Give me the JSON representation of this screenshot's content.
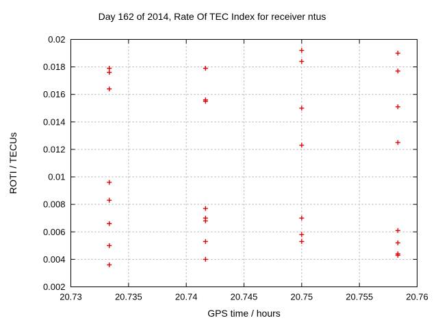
{
  "chart_data": {
    "type": "scatter",
    "title": "Day 162 of 2014, Rate Of TEC Index for receiver ntus",
    "xlabel": "GPS time / hours",
    "ylabel": "ROTI / TECUs",
    "xlim": [
      20.73,
      20.76
    ],
    "ylim": [
      0.002,
      0.02
    ],
    "xticks": [
      20.73,
      20.735,
      20.74,
      20.745,
      20.75,
      20.755,
      20.76
    ],
    "xtick_labels": [
      "20.73",
      "20.735",
      "20.74",
      "20.745",
      "20.75",
      "20.755",
      "20.76"
    ],
    "yticks": [
      0.002,
      0.004,
      0.006,
      0.008,
      0.01,
      0.012,
      0.014,
      0.016,
      0.018,
      0.02
    ],
    "ytick_labels": [
      "0.002",
      "0.004",
      "0.006",
      "0.008",
      "0.01",
      "0.012",
      "0.014",
      "0.016",
      "0.018",
      "0.02"
    ],
    "grid": true,
    "legend": "none",
    "marker": "plus",
    "marker_color": "#e60000",
    "series": [
      {
        "name": "ROTI",
        "points": [
          [
            20.733333,
            0.0179
          ],
          [
            20.733333,
            0.0176
          ],
          [
            20.733333,
            0.0164
          ],
          [
            20.733333,
            0.0096
          ],
          [
            20.733333,
            0.0083
          ],
          [
            20.733333,
            0.0066
          ],
          [
            20.733333,
            0.005
          ],
          [
            20.733333,
            0.0036
          ],
          [
            20.741667,
            0.0179
          ],
          [
            20.741667,
            0.0156
          ],
          [
            20.741667,
            0.0155
          ],
          [
            20.741667,
            0.0077
          ],
          [
            20.741667,
            0.007
          ],
          [
            20.741667,
            0.0068
          ],
          [
            20.741667,
            0.0053
          ],
          [
            20.741667,
            0.004
          ],
          [
            20.75,
            0.0192
          ],
          [
            20.75,
            0.0184
          ],
          [
            20.75,
            0.015
          ],
          [
            20.75,
            0.0123
          ],
          [
            20.75,
            0.007
          ],
          [
            20.75,
            0.0058
          ],
          [
            20.75,
            0.0053
          ],
          [
            20.758333,
            0.019
          ],
          [
            20.758333,
            0.0177
          ],
          [
            20.758333,
            0.0151
          ],
          [
            20.758333,
            0.0125
          ],
          [
            20.758333,
            0.0061
          ],
          [
            20.758333,
            0.0052
          ],
          [
            20.758333,
            0.0044
          ],
          [
            20.758333,
            0.0043
          ]
        ]
      }
    ]
  }
}
